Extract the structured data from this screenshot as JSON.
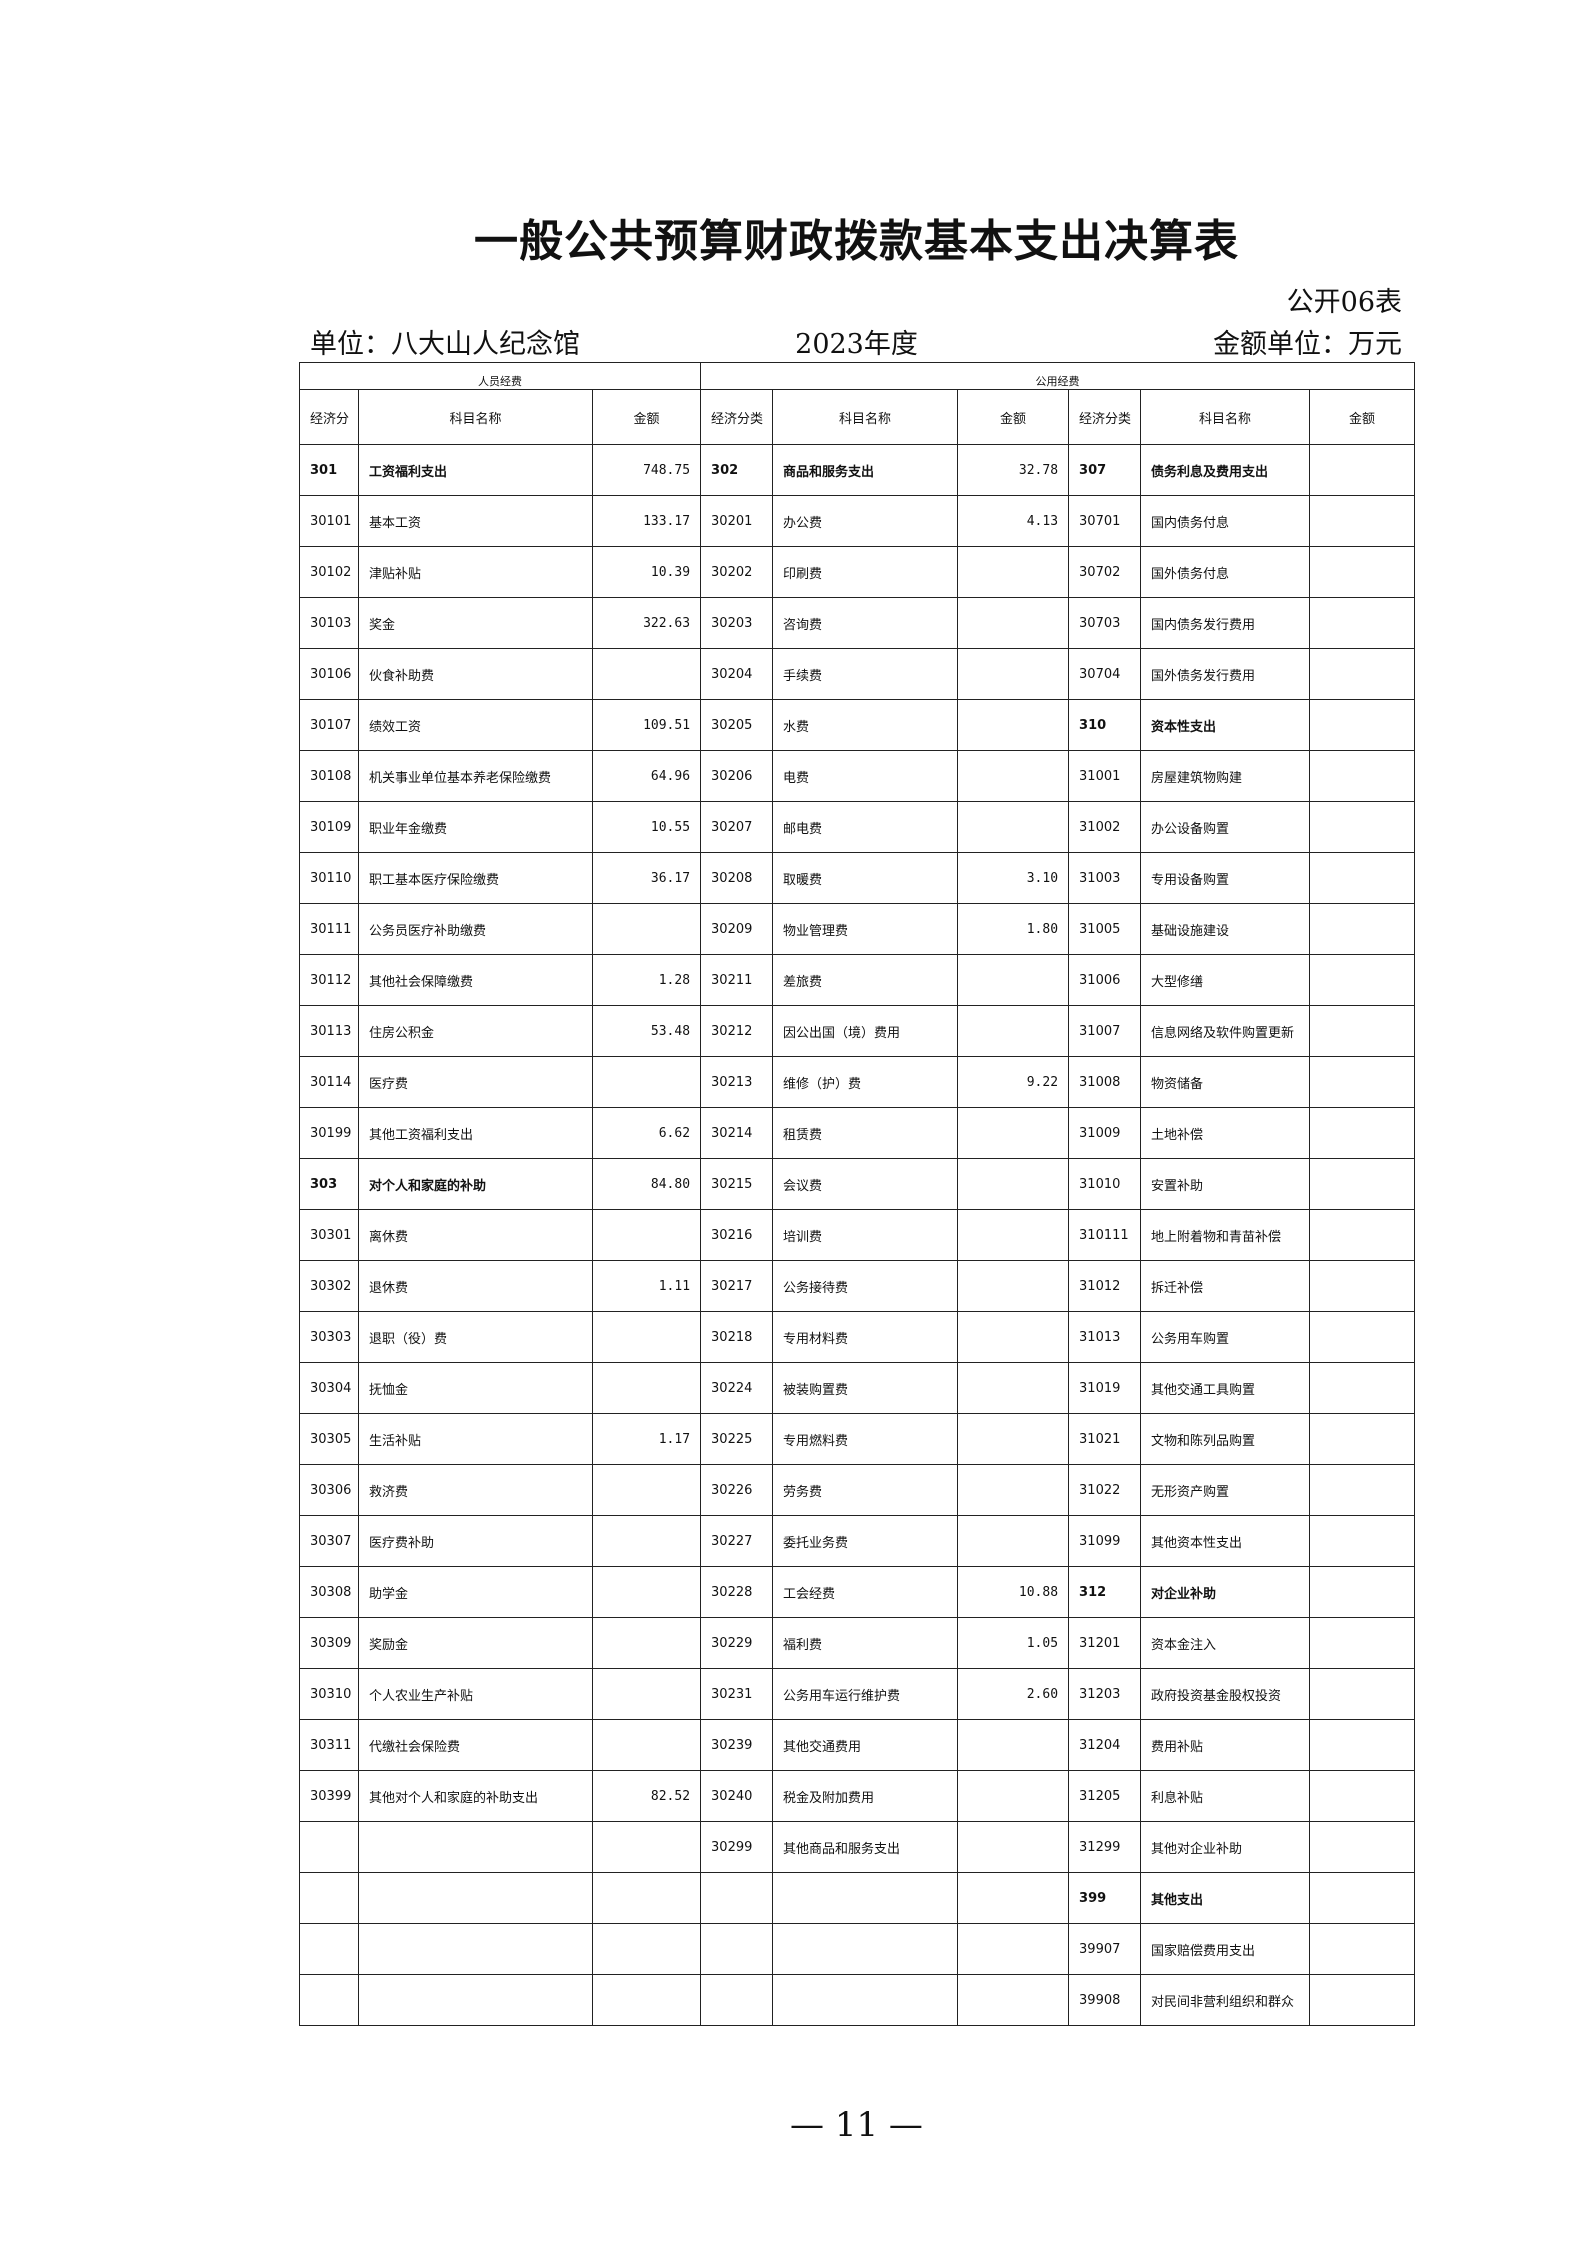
{
  "header": {
    "title": "一般公共预算财政拨款基本支出决算表",
    "form_number": "公开06表",
    "unit": "单位：八大山人纪念馆",
    "year": "2023年度",
    "money_unit": "金额单位：万元"
  },
  "table": {
    "groups": [
      "人员经费",
      "公用经费"
    ],
    "columns": [
      "经济分",
      "科目名称",
      "金额",
      "经济分类",
      "科目名称",
      "金额",
      "经济分类",
      "科目名称",
      "金额"
    ],
    "rows": [
      [
        "301",
        "工资福利支出",
        "748.75",
        "302",
        "商品和服务支出",
        "32.78",
        "307",
        "债务利息及费用支出",
        null
      ],
      [
        "30101",
        "基本工资",
        "133.17",
        "30201",
        "办公费",
        "4.13",
        "30701",
        "国内债务付息",
        null
      ],
      [
        "30102",
        "津贴补贴",
        "10.39",
        "30202",
        "印刷费",
        null,
        "30702",
        "国外债务付息",
        null
      ],
      [
        "30103",
        "奖金",
        "322.63",
        "30203",
        "咨询费",
        null,
        "30703",
        "国内债务发行费用",
        null
      ],
      [
        "30106",
        "伙食补助费",
        null,
        "30204",
        "手续费",
        null,
        "30704",
        "国外债务发行费用",
        null
      ],
      [
        "30107",
        "绩效工资",
        "109.51",
        "30205",
        "水费",
        null,
        "310",
        "资本性支出",
        null
      ],
      [
        "30108",
        "机关事业单位基本养老保险缴费",
        "64.96",
        "30206",
        "电费",
        null,
        "31001",
        "房屋建筑物购建",
        null
      ],
      [
        "30109",
        "职业年金缴费",
        "10.55",
        "30207",
        "邮电费",
        null,
        "31002",
        "办公设备购置",
        null
      ],
      [
        "30110",
        "职工基本医疗保险缴费",
        "36.17",
        "30208",
        "取暖费",
        "3.10",
        "31003",
        "专用设备购置",
        null
      ],
      [
        "30111",
        "公务员医疗补助缴费",
        null,
        "30209",
        "物业管理费",
        "1.80",
        "31005",
        "基础设施建设",
        null
      ],
      [
        "30112",
        "其他社会保障缴费",
        "1.28",
        "30211",
        "差旅费",
        null,
        "31006",
        "大型修缮",
        null
      ],
      [
        "30113",
        "住房公积金",
        "53.48",
        "30212",
        "因公出国（境）费用",
        null,
        "31007",
        "信息网络及软件购置更新",
        null
      ],
      [
        "30114",
        "医疗费",
        null,
        "30213",
        "维修（护）费",
        "9.22",
        "31008",
        "物资储备",
        null
      ],
      [
        "30199",
        "其他工资福利支出",
        "6.62",
        "30214",
        "租赁费",
        null,
        "31009",
        "土地补偿",
        null
      ],
      [
        "303",
        "对个人和家庭的补助",
        "84.80",
        "30215",
        "会议费",
        null,
        "31010",
        "安置补助",
        null
      ],
      [
        "30301",
        "离休费",
        null,
        "30216",
        "培训费",
        null,
        "310111",
        "地上附着物和青苗补偿",
        null
      ],
      [
        "30302",
        "退休费",
        "1.11",
        "30217",
        "公务接待费",
        null,
        "31012",
        "拆迁补偿",
        null
      ],
      [
        "30303",
        "退职（役）费",
        null,
        "30218",
        "专用材料费",
        null,
        "31013",
        "公务用车购置",
        null
      ],
      [
        "30304",
        "抚恤金",
        null,
        "30224",
        "被装购置费",
        null,
        "31019",
        "其他交通工具购置",
        null
      ],
      [
        "30305",
        "生活补贴",
        "1.17",
        "30225",
        "专用燃料费",
        null,
        "31021",
        "文物和陈列品购置",
        null
      ],
      [
        "30306",
        "救济费",
        null,
        "30226",
        "劳务费",
        null,
        "31022",
        "无形资产购置",
        null
      ],
      [
        "30307",
        "医疗费补助",
        null,
        "30227",
        "委托业务费",
        null,
        "31099",
        "其他资本性支出",
        null
      ],
      [
        "30308",
        "助学金",
        null,
        "30228",
        "工会经费",
        "10.88",
        "312",
        "对企业补助",
        null
      ],
      [
        "30309",
        "奖励金",
        null,
        "30229",
        "福利费",
        "1.05",
        "31201",
        "资本金注入",
        null
      ],
      [
        "30310",
        "个人农业生产补贴",
        null,
        "30231",
        "公务用车运行维护费",
        "2.60",
        "31203",
        "政府投资基金股权投资",
        null
      ],
      [
        "30311",
        "代缴社会保险费",
        null,
        "30239",
        "其他交通费用",
        null,
        "31204",
        "费用补贴",
        null
      ],
      [
        "30399",
        "其他对个人和家庭的补助支出",
        "82.52",
        "30240",
        "税金及附加费用",
        null,
        "31205",
        "利息补贴",
        null
      ],
      [
        null,
        null,
        null,
        "30299",
        "其他商品和服务支出",
        null,
        "31299",
        "其他对企业补助",
        null
      ],
      [
        null,
        null,
        null,
        null,
        null,
        null,
        "399",
        "其他支出",
        null
      ],
      [
        null,
        null,
        null,
        null,
        null,
        null,
        "39907",
        "国家赔偿费用支出",
        null
      ],
      [
        null,
        null,
        null,
        null,
        null,
        null,
        "39908",
        "对民间非营利组织和群众",
        null
      ]
    ]
  },
  "footer": {
    "page_number": "— 11 —"
  }
}
